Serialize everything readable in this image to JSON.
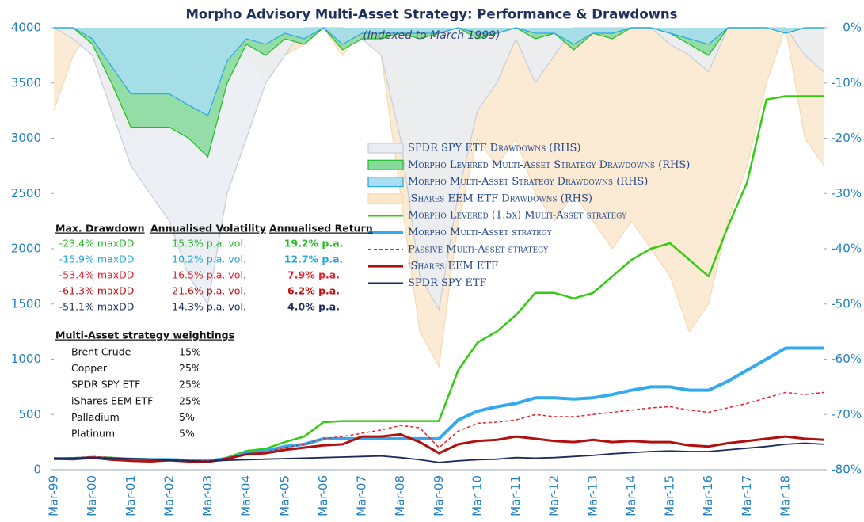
{
  "chart_data": {
    "type": "line",
    "title": "Morpho Advisory Multi-Asset Strategy: Performance & Drawdowns",
    "subtitle": "(Indexed to March 1999)",
    "categories": [
      "Mar-99",
      null,
      "Mar-00",
      null,
      "Mar-01",
      null,
      "Mar-02",
      null,
      "Mar-03",
      null,
      "Mar-04",
      null,
      "Mar-05",
      null,
      "Mar-06",
      null,
      "Mar-07",
      null,
      "Mar-08",
      null,
      "Mar-09",
      null,
      "Mar-10",
      null,
      "Mar-11",
      null,
      "Mar-12",
      null,
      "Mar-13",
      null,
      "Mar-14",
      null,
      "Mar-15",
      null,
      "Mar-16",
      null,
      "Mar-17",
      null,
      "Mar-18",
      null,
      null
    ],
    "ylim": [
      0,
      4000
    ],
    "yticks": [
      0,
      500,
      1000,
      1500,
      2000,
      2500,
      3000,
      3500,
      4000
    ],
    "y2lim": [
      -80,
      0
    ],
    "y2ticks": [
      {
        "value": -80,
        "label": "-80%"
      },
      {
        "value": -70,
        "label": "-70%"
      },
      {
        "value": -60,
        "label": "-60%"
      },
      {
        "value": -50,
        "label": "-50%"
      },
      {
        "value": -40,
        "label": "-40%"
      },
      {
        "value": -30,
        "label": "-30%"
      },
      {
        "value": -20,
        "label": "-20%"
      },
      {
        "value": -10,
        "label": "-10%"
      },
      {
        "value": 0,
        "label": "0%"
      }
    ],
    "series": [
      {
        "name": "SPDR SPY ETF Drawdowns (RHS)",
        "axis": "y2",
        "style": "area",
        "color": "#c5cdd9",
        "fill": "#e9edf3",
        "values": [
          0,
          -2,
          -5,
          -15,
          -25,
          -30,
          -35,
          -45,
          -50,
          -30,
          -20,
          -10,
          -5,
          0,
          0,
          0,
          -2,
          -5,
          -20,
          -45,
          -51,
          -30,
          -15,
          -10,
          -2,
          -10,
          -5,
          0,
          0,
          0,
          0,
          0,
          -3,
          -5,
          -8,
          0,
          0,
          0,
          0,
          -5,
          -8
        ]
      },
      {
        "name": "Morpho Levered Multi-Asset Strategy Drawdowns (RHS)",
        "axis": "y2",
        "style": "area",
        "color": "#22bb22",
        "fill": "#86d99a",
        "values": [
          0,
          0,
          -3,
          -10,
          -18,
          -18,
          -18,
          -20,
          -23.4,
          -10,
          -3,
          -5,
          -2,
          -3,
          0,
          -4,
          -2,
          -2,
          -1,
          -2,
          -1,
          0,
          -2,
          -1,
          0,
          -2,
          -1,
          -4,
          -1,
          -2,
          0,
          0,
          -1,
          -3,
          -5,
          0,
          0,
          0,
          -1,
          0,
          0
        ]
      },
      {
        "name": "Morpho Multi-Asset Strategy Drawdowns (RHS)",
        "axis": "y2",
        "style": "area",
        "color": "#2aa8e0",
        "fill": "#a9def2",
        "values": [
          0,
          0,
          -2,
          -7,
          -12,
          -12,
          -12,
          -14,
          -15.9,
          -6,
          -2,
          -3,
          -1,
          -2,
          0,
          -3,
          -1,
          -1,
          -1,
          -1,
          -1,
          0,
          -1,
          -1,
          0,
          -1,
          -1,
          -3,
          -1,
          -1,
          0,
          0,
          -1,
          -2,
          -3,
          0,
          0,
          0,
          -1,
          0,
          0
        ]
      },
      {
        "name": "iShares EEM ETF Drawdowns (RHS)",
        "axis": "y2",
        "style": "area",
        "color": "#f3d9b4",
        "fill": "#fbe7cc",
        "values": [
          -15,
          -5,
          0,
          -15,
          -20,
          -10,
          -5,
          -10,
          -15,
          0,
          -5,
          -10,
          -5,
          -3,
          0,
          -5,
          0,
          -5,
          -30,
          -55,
          -61.3,
          -35,
          -20,
          -25,
          -20,
          -30,
          -35,
          -30,
          -35,
          -40,
          -35,
          -40,
          -45,
          -55,
          -50,
          -35,
          -25,
          -10,
          0,
          -20,
          -25
        ]
      },
      {
        "name": "Morpho Levered (1.5x) Multi-Asset strategy",
        "style": "line",
        "width": 2.5,
        "color": "#33cc11",
        "values": [
          100,
          105,
          115,
          110,
          95,
          90,
          95,
          85,
          80,
          110,
          170,
          190,
          250,
          300,
          430,
          440,
          440,
          440,
          440,
          440,
          440,
          900,
          1150,
          1250,
          1400,
          1600,
          1600,
          1550,
          1600,
          1750,
          1900,
          2000,
          2050,
          1900,
          1750,
          2200,
          2600,
          3350,
          3380,
          3380,
          3380
        ]
      },
      {
        "name": "Morpho Multi-Asset strategy",
        "style": "line",
        "width": 4,
        "color": "#33aaee",
        "values": [
          100,
          100,
          110,
          100,
          95,
          90,
          90,
          85,
          80,
          100,
          150,
          170,
          210,
          230,
          280,
          280,
          280,
          280,
          280,
          280,
          280,
          450,
          530,
          570,
          600,
          650,
          650,
          640,
          650,
          680,
          720,
          750,
          750,
          720,
          720,
          800,
          900,
          1000,
          1100,
          1100,
          1100
        ]
      },
      {
        "name": "Passive Multi-Asset strategy",
        "style": "dashed",
        "width": 1.5,
        "color": "#e8202a",
        "values": [
          100,
          105,
          120,
          110,
          100,
          95,
          95,
          85,
          80,
          100,
          140,
          160,
          200,
          230,
          280,
          300,
          330,
          360,
          400,
          380,
          200,
          350,
          420,
          430,
          450,
          500,
          480,
          480,
          500,
          520,
          540,
          560,
          570,
          540,
          520,
          560,
          600,
          650,
          700,
          680,
          700
        ]
      },
      {
        "name": "iShares EEM ETF",
        "style": "line",
        "width": 3,
        "color": "#b01010",
        "values": [
          100,
          95,
          110,
          90,
          80,
          75,
          85,
          75,
          70,
          100,
          140,
          150,
          180,
          200,
          220,
          230,
          300,
          300,
          320,
          250,
          150,
          230,
          260,
          270,
          300,
          280,
          260,
          250,
          270,
          250,
          260,
          250,
          250,
          220,
          210,
          240,
          260,
          280,
          300,
          280,
          270
        ]
      },
      {
        "name": "SPDR SPY ETF",
        "style": "line",
        "width": 1.8,
        "color": "#1c2a5c",
        "values": [
          100,
          105,
          110,
          105,
          100,
          95,
          85,
          80,
          75,
          85,
          90,
          95,
          100,
          105,
          110,
          115,
          120,
          125,
          110,
          90,
          65,
          80,
          90,
          95,
          110,
          105,
          110,
          120,
          130,
          145,
          155,
          165,
          170,
          165,
          165,
          180,
          195,
          210,
          230,
          240,
          230
        ]
      }
    ],
    "stats": {
      "headers": [
        "Max. Drawdown",
        "Annualised Volatility",
        "Annualised Return"
      ],
      "rows": [
        {
          "color": "#22bb22",
          "cells": [
            "-23.4% maxDD",
            "15.3% p.a. vol.",
            "19.2% p.a."
          ]
        },
        {
          "color": "#22a8e0",
          "cells": [
            "-15.9% maxDD",
            "10.2% p.a. vol.",
            "12.7% p.a."
          ]
        },
        {
          "color": "#e8202a",
          "cells": [
            "-53.4% maxDD",
            "16.5% p.a. vol.",
            "7.9% p.a."
          ]
        },
        {
          "color": "#c01010",
          "cells": [
            "-61.3% maxDD",
            "21.6% p.a. vol.",
            "6.2% p.a."
          ]
        },
        {
          "color": "#1c2a5c",
          "cells": [
            "-51.1% maxDD",
            "14.3% p.a. vol.",
            "4.0% p.a."
          ]
        }
      ]
    },
    "weightings": {
      "title": "Multi-Asset strategy weightings",
      "rows": [
        [
          "Brent Crude",
          "15%"
        ],
        [
          "Copper",
          "25%"
        ],
        [
          "SPDR SPY ETF",
          "25%"
        ],
        [
          "iShares EEM ETF",
          "25%"
        ],
        [
          "Palladium",
          "5%"
        ],
        [
          "Platinum",
          "5%"
        ]
      ]
    }
  }
}
